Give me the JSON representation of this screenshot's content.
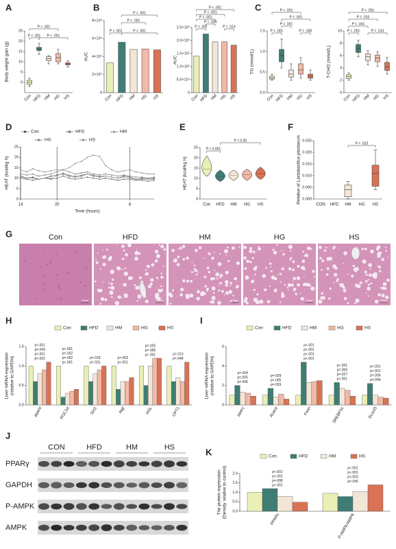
{
  "chart_data": [
    {
      "panel_label": "A",
      "type": "box",
      "ylabel": "Body weight gain (g)",
      "categories": [
        "Con",
        "HFD",
        "HM",
        "HG",
        "HS"
      ],
      "colors": [
        "#e9efb5",
        "#3f7d74",
        "#f3e6d6",
        "#f2b9a6",
        "#d87355"
      ],
      "boxes": [
        {
          "min": -2,
          "q1": -1,
          "median": 0,
          "q3": 1,
          "max": 2
        },
        {
          "min": 13.5,
          "q1": 15.5,
          "median": 16,
          "q3": 17,
          "max": 19
        },
        {
          "min": 9,
          "q1": 10.5,
          "median": 11.5,
          "q3": 12.5,
          "max": 13
        },
        {
          "min": 9,
          "q1": 10,
          "median": 12,
          "q3": 14,
          "max": 16
        },
        {
          "min": 7.5,
          "q1": 8.5,
          "median": 9,
          "q3": 9.5,
          "max": 10.5
        }
      ],
      "ylim": [
        -5,
        25
      ],
      "yticks": [
        0,
        5,
        10,
        15,
        20,
        25
      ],
      "annotations": [
        "P < .001",
        "P < .001",
        "P < .001"
      ]
    },
    {
      "panel_label": "B",
      "type": "bar",
      "ylabel": "AUC",
      "categories": [
        "Con",
        "HFD",
        "HM",
        "HG",
        "HS"
      ],
      "colors": [
        "#e9efb5",
        "#3f7d74",
        "#f3e6d6",
        "#f2b9a6",
        "#d87355"
      ],
      "values": [
        33000,
        56000,
        48000,
        48500,
        47500
      ],
      "ylim": [
        0,
        80000
      ],
      "yticks": [
        0,
        {
          "value": 20000,
          "label": "2×10⁴"
        },
        {
          "value": 40000,
          "label": "4×10⁴"
        },
        {
          "value": 60000,
          "label": "6×10⁴"
        },
        {
          "value": 80000,
          "label": "8×10⁴"
        }
      ],
      "annotations": [
        "P < .001",
        "P < .001",
        "P < .001",
        "P < .001"
      ]
    },
    {
      "type": "bar",
      "ylabel": "AUC",
      "categories": [
        "Con",
        "HFD",
        "HM",
        "HG",
        "HS"
      ],
      "colors": [
        "#e9efb5",
        "#3f7d74",
        "#f3e6d6",
        "#f2b9a6",
        "#d87355"
      ],
      "values": [
        140000,
        225000,
        195000,
        195000,
        182000
      ],
      "ylim": [
        0,
        250000
      ],
      "yticks": [
        0,
        {
          "value": 50000,
          "label": "5.0×10⁴"
        },
        {
          "value": 100000,
          "label": "1.0×10⁵"
        },
        {
          "value": 150000,
          "label": "1.5×10⁵"
        },
        {
          "value": 200000,
          "label": "2.0×10⁵"
        },
        {
          "value": 250000,
          "label": "2.5×10⁵"
        }
      ],
      "annotations": [
        "P < .001",
        "P < .001",
        "P = .001",
        "P = .009",
        "P < .001",
        "P = .014"
      ]
    },
    {
      "panel_label": "C",
      "type": "box",
      "ylabel": "TG (mmol/L)",
      "categories": [
        "Con",
        "HFD",
        "HM",
        "HG",
        "HS"
      ],
      "colors": [
        "#e9efb5",
        "#3f7d74",
        "#f3e6d6",
        "#f2b9a6",
        "#d87355"
      ],
      "boxes": [
        {
          "min": 0.3,
          "q1": 0.33,
          "median": 0.36,
          "q3": 0.4,
          "max": 0.45
        },
        {
          "min": 0.6,
          "q1": 0.75,
          "median": 0.9,
          "q3": 1.05,
          "max": 1.3
        },
        {
          "min": 0.3,
          "q1": 0.38,
          "median": 0.45,
          "q3": 0.55,
          "max": 0.7
        },
        {
          "min": 0.35,
          "q1": 0.45,
          "median": 0.55,
          "q3": 0.7,
          "max": 0.85
        },
        {
          "min": 0.3,
          "q1": 0.35,
          "median": 0.4,
          "q3": 0.45,
          "max": 0.55
        }
      ],
      "ylim": [
        0,
        1.5
      ],
      "yticks": [
        {
          "value": 0,
          "label": "0.0"
        },
        0.5,
        {
          "value": 1,
          "label": "1.0"
        },
        1.5
      ],
      "annotations": [
        "P < .001",
        "P = .001",
        "P = .001",
        "P < .001",
        "P = .030"
      ]
    },
    {
      "type": "box",
      "ylabel": "T-CHO (mmol/L)",
      "categories": [
        "Con",
        "HFD",
        "HM",
        "HG",
        "HS"
      ],
      "colors": [
        "#e9efb5",
        "#3f7d74",
        "#f3e6d6",
        "#f2b9a6",
        "#d87355"
      ],
      "boxes": [
        {
          "min": 2,
          "q1": 2.3,
          "median": 2.6,
          "q3": 2.9,
          "max": 3.2
        },
        {
          "min": 5.8,
          "q1": 6.5,
          "median": 7.2,
          "q3": 7.8,
          "max": 8.5
        },
        {
          "min": 4.5,
          "q1": 5.2,
          "median": 5.8,
          "q3": 6.3,
          "max": 6.8
        },
        {
          "min": 4.3,
          "q1": 5.0,
          "median": 5.6,
          "q3": 6.1,
          "max": 6.6
        },
        {
          "min": 3,
          "q1": 3.6,
          "median": 4.2,
          "q3": 4.9,
          "max": 5.7
        }
      ],
      "ylim": [
        0,
        10
      ],
      "yticks": [
        0,
        2,
        4,
        6,
        8,
        10
      ],
      "annotations": [
        "P < .001",
        "P = .010",
        "P = .041",
        "P < .001",
        "P = .013"
      ]
    },
    {
      "panel_label": "D",
      "type": "line",
      "ylabel": "HEAT (kcal/kg h)",
      "xlabel": "Time (hours)",
      "x": [
        0,
        1,
        2,
        3,
        4,
        5,
        6,
        7,
        8,
        9,
        10,
        11,
        12,
        13,
        14,
        15,
        16,
        17,
        18,
        19,
        20,
        21,
        22
      ],
      "xlim": [
        0,
        22
      ],
      "xticks": [
        {
          "value": 0,
          "label": "14"
        },
        {
          "value": 6,
          "label": "20"
        },
        {
          "value": 18,
          "label": "8"
        }
      ],
      "grid": "x",
      "ylim": [
        0,
        25
      ],
      "yticks": [
        0,
        5,
        10,
        15,
        20,
        25
      ],
      "series": [
        {
          "name": "Con",
          "color": "#444444",
          "values": [
            11,
            10,
            10.5,
            9.5,
            10,
            11,
            11.5,
            12,
            11,
            10.5,
            11,
            12,
            11,
            10.5,
            11,
            10.5,
            10,
            11,
            10.5,
            9.5,
            10,
            9.5,
            10
          ]
        },
        {
          "name": "HFD",
          "color": "#666666",
          "values": [
            10,
            9.5,
            9,
            9.5,
            10,
            9.5,
            10,
            11,
            10,
            9.5,
            10,
            10.5,
            10,
            9.5,
            10,
            9.5,
            9,
            9.5,
            9.5,
            9,
            9,
            8.5,
            9
          ]
        },
        {
          "name": "HM",
          "color": "#888888",
          "values": [
            14,
            13,
            14.5,
            13.5,
            13,
            13.5,
            14,
            14,
            15,
            17,
            18,
            20,
            21,
            20.5,
            16,
            14,
            13,
            13.5,
            14,
            13,
            12.5,
            12,
            12
          ]
        },
        {
          "name": "HG",
          "color": "#777777",
          "values": [
            12,
            11.5,
            12,
            11,
            11.5,
            12,
            13,
            14,
            13,
            12,
            12.5,
            13,
            12,
            11.5,
            12,
            11.5,
            11,
            11.5,
            11,
            10.5,
            10.5,
            10,
            10.5
          ]
        },
        {
          "name": "HS",
          "color": "#999999",
          "values": [
            10.5,
            10,
            10,
            9.5,
            10,
            10,
            11,
            12.5,
            11.5,
            11,
            11.5,
            12,
            11.5,
            11,
            11,
            10.5,
            10,
            10.5,
            10,
            9.5,
            9.5,
            9.5,
            9.5
          ]
        }
      ]
    },
    {
      "panel_label": "E",
      "type": "violin",
      "ylabel": "HEAT (kcal/kg h)",
      "categories": [
        "Con",
        "HFD",
        "HM",
        "HG",
        "HS"
      ],
      "colors": [
        "#e9efb5",
        "#3f7d74",
        "#f3e6d6",
        "#f2b9a6",
        "#d87355"
      ],
      "violins": [
        {
          "min": 11,
          "median": 14.5,
          "max": 21
        },
        {
          "min": 8.5,
          "median": 11,
          "max": 14
        },
        {
          "min": 9,
          "median": 11.5,
          "max": 14
        },
        {
          "min": 9,
          "median": 11.8,
          "max": 14.5
        },
        {
          "min": 9.5,
          "median": 12.3,
          "max": 15.5
        }
      ],
      "ylim": [
        0,
        25
      ],
      "yticks": [
        0,
        5,
        10,
        15,
        20,
        25
      ],
      "annotations": [
        "P < 0.001",
        "P = 0.05"
      ]
    },
    {
      "panel_label": "F",
      "type": "box",
      "ylabel": "Relative of Lactobacillus plantarum",
      "categories": [
        "CON",
        "HFD",
        "HM",
        "HG",
        "HS"
      ],
      "colors": [
        "#e9efb5",
        "#3f7d74",
        "#f3e6d6",
        "#f2b9a6",
        "#d87355"
      ],
      "boxes": [
        null,
        null,
        {
          "min": 0,
          "q1": 0.001,
          "median": 0.004,
          "q3": 0.006,
          "max": 0.0075
        },
        null,
        {
          "min": 0.004,
          "q1": 0.0055,
          "median": 0.011,
          "q3": 0.0145,
          "max": 0.021
        }
      ],
      "ylim": [
        0,
        0.025
      ],
      "yticks": [
        {
          "value": 0,
          "label": "0.000"
        },
        0.005,
        {
          "value": 0.01,
          "label": "0.010"
        },
        0.015,
        {
          "value": 0.02,
          "label": "0.020"
        },
        0.025
      ],
      "annotations": [
        "P = .023"
      ]
    },
    {
      "panel_label": "H",
      "type": "grouped_bar",
      "ylabel": [
        "Liver mRNA expression",
        "(relative to GAPDH)"
      ],
      "categories": [
        "pparα",
        "PGC1α",
        "Sirt1",
        "Atgl",
        "HSL",
        "CPT1"
      ],
      "series": [
        {
          "name": "Con",
          "color": "#e9efb5",
          "values": [
            1.0,
            1.0,
            1.0,
            1.0,
            1.0,
            1.0
          ]
        },
        {
          "name": "HFD",
          "color": "#3f7d74",
          "values": [
            0.6,
            0.2,
            0.6,
            0.4,
            0.5,
            0.6
          ]
        },
        {
          "name": "HM",
          "color": "#f3e6d6",
          "values": [
            0.8,
            0.3,
            0.8,
            0.6,
            1.0,
            0.7
          ]
        },
        {
          "name": "HG",
          "color": "#f2b9a6",
          "values": [
            0.9,
            0.35,
            0.9,
            0.6,
            1.2,
            0.6
          ]
        },
        {
          "name": "HS",
          "color": "#d87355",
          "values": [
            1.1,
            0.4,
            1.0,
            0.7,
            1.2,
            1.1
          ]
        }
      ],
      "ylim": [
        0,
        1.5
      ],
      "yticks": [
        {
          "value": 0,
          "label": "0.0"
        },
        0.5,
        {
          "value": 1,
          "label": "1.0"
        },
        1.5
      ],
      "annotations": [
        [
          "p=.002",
          "p=.001",
          "p=.043",
          "p<.001"
        ],
        [
          "p<.001",
          "p=.002",
          "p=.002",
          "p<.001"
        ],
        [
          "p=.031",
          "p=.018"
        ],
        [
          "p<.001",
          "p=.003"
        ],
        [
          "p<.001",
          "p=.006",
          "p=.025"
        ],
        [
          "p=.048",
          "p=.013"
        ]
      ]
    },
    {
      "panel_label": "I",
      "type": "grouped_bar",
      "ylabel": [
        "Liver mRNA expression",
        "(relative to GAPDH)"
      ],
      "categories": [
        "pparγ",
        "Acaca",
        "Fasn",
        "SREBP1c",
        "ELovl3"
      ],
      "series": [
        {
          "name": "Con",
          "color": "#e9efb5",
          "values": [
            1,
            1,
            1,
            1,
            1
          ]
        },
        {
          "name": "HFD",
          "color": "#3f7d74",
          "values": [
            2.0,
            1.7,
            4.4,
            2.3,
            2.2
          ]
        },
        {
          "name": "HM",
          "color": "#f3e6d6",
          "values": [
            1.3,
            0.8,
            2.3,
            1.7,
            1.0
          ]
        },
        {
          "name": "HG",
          "color": "#f2b9a6",
          "values": [
            1.2,
            1.1,
            2.4,
            1.5,
            0.8
          ]
        },
        {
          "name": "HS",
          "color": "#d87355",
          "values": [
            0.9,
            0.6,
            2.5,
            0.9,
            0.7
          ]
        }
      ],
      "ylim": [
        0,
        6
      ],
      "yticks": [
        0,
        2,
        4,
        6
      ],
      "annotations": [
        [
          "p=.006",
          "p=.005",
          "p=.004"
        ],
        [
          "p=.029",
          "p=.005",
          "p=.029"
        ],
        [
          "p<.001",
          "p<.001",
          "p<.001",
          "p<.001"
        ],
        [
          "p<.001",
          "p=.027",
          "p=.006",
          "p<.001"
        ],
        [
          "p=.004",
          "p=.006",
          "p<.001",
          "p<.001"
        ]
      ]
    },
    {
      "panel_label": "K",
      "type": "grouped_bar",
      "ylabel": [
        "The protein expression",
        "(Density relative to control)"
      ],
      "categories": [
        "PPARγ",
        "P-AMPK/AMPK"
      ],
      "series": [
        {
          "name": "Con",
          "color": "#e9efb5",
          "values": [
            1.0,
            0.95
          ]
        },
        {
          "name": "HFD",
          "color": "#3f7d74",
          "values": [
            1.2,
            0.78
          ]
        },
        {
          "name": "HM",
          "color": "#f3e6d6",
          "values": [
            0.78,
            1.05
          ]
        },
        {
          "name": "HS",
          "color": "#d87355",
          "values": [
            0.48,
            1.4
          ]
        }
      ],
      "ylim": [
        0,
        2
      ],
      "yticks": [
        {
          "value": 0,
          "label": "0.0"
        },
        0.5,
        {
          "value": 1,
          "label": "1.0"
        },
        1.5,
        {
          "value": 2,
          "label": "2.0"
        }
      ],
      "annotations": [
        [
          "p<.001",
          "p=.008",
          "p<.001",
          "p<.001"
        ],
        [
          "p=.045",
          "p=.003",
          "p<.001",
          "p<.001"
        ]
      ]
    }
  ],
  "histology": {
    "panel_label": "G",
    "labels": [
      "Con",
      "HFD",
      "HM",
      "HG",
      "HS"
    ],
    "scale_bar": "100μm"
  },
  "western_blot": {
    "panel_label": "J",
    "groups": [
      "CON",
      "HFD",
      "HM",
      "HS"
    ],
    "proteins": [
      "PPARγ",
      "GAPDH",
      "P-AMPK",
      "AMPK"
    ]
  }
}
